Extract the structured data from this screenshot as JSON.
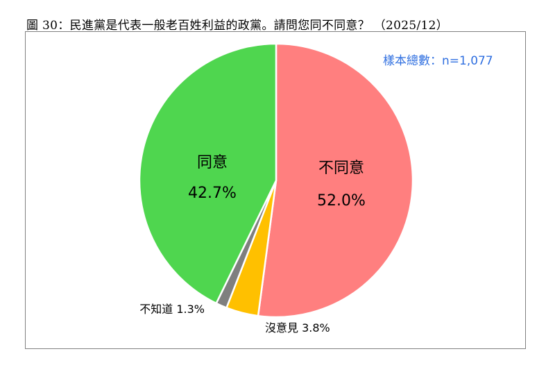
{
  "title": "圖 30：民進黨是代表一般老百姓利益的政黨。請問您同不同意？ （2025/12）",
  "sample_label": "樣本總數：n=1,077",
  "chart_data": {
    "type": "pie",
    "title": "圖 30：民進黨是代表一般老百姓利益的政黨。請問您同不同意？ （2025/12）",
    "start": "12 o'clock",
    "direction": "clockwise",
    "slices": [
      {
        "label": "不同意",
        "value": 52.0,
        "value_label": "52.0%",
        "color": "#ff7f7f",
        "label_position": "inside"
      },
      {
        "label": "沒意見",
        "value": 3.8,
        "value_label": "3.8%",
        "color": "#ffc000",
        "label_position": "outside"
      },
      {
        "label": "不知道",
        "value": 1.3,
        "value_label": "1.3%",
        "color": "#7f7f7f",
        "label_position": "outside"
      },
      {
        "label": "同意",
        "value": 42.7,
        "value_label": "42.7%",
        "color": "#4fd64f",
        "label_position": "inside"
      }
    ]
  }
}
